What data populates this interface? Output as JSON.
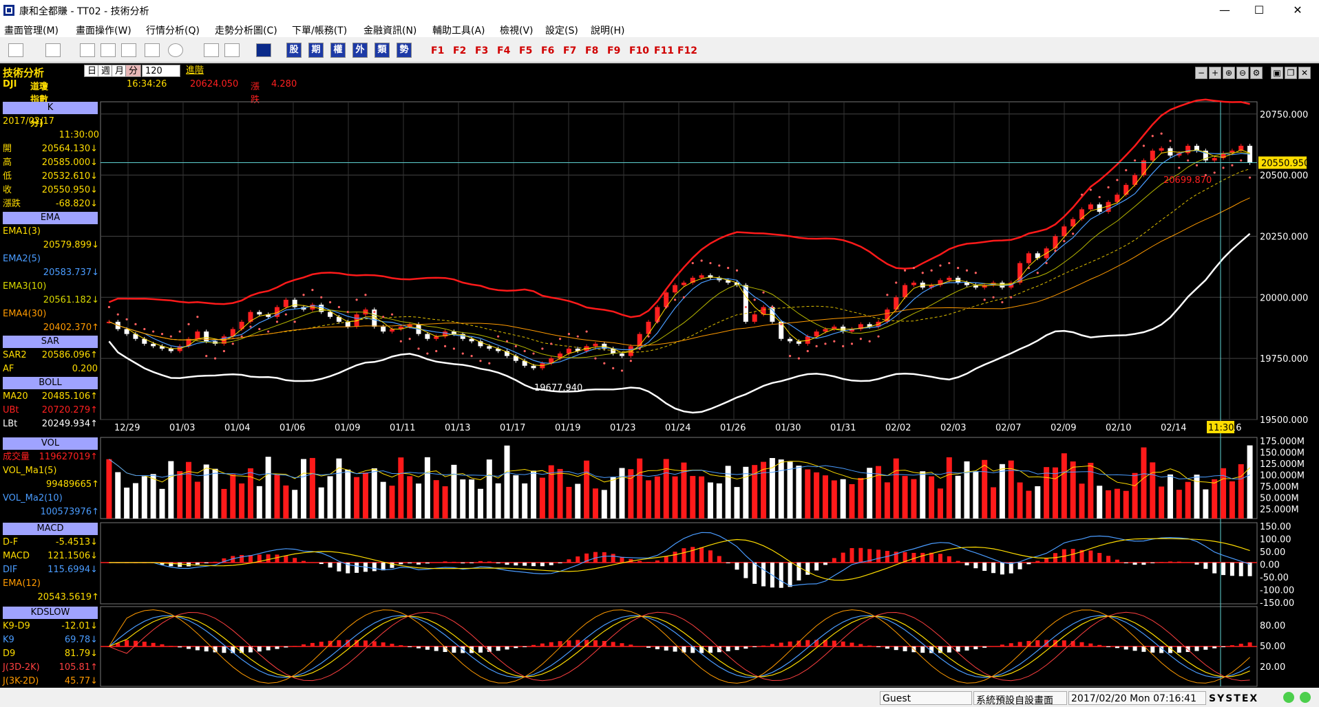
{
  "window": {
    "title": "康和全都賺 - TT02 - 技術分析",
    "minimize": "—",
    "maximize": "☐",
    "close": "✕"
  },
  "menu": [
    "畫面管理(M)",
    "畫面操作(W)",
    "行情分析(Q)",
    "走勢分析圖(C)",
    "下單/帳務(T)",
    "金融資訊(N)",
    "輔助工具(A)",
    "檢視(V)",
    "設定(S)",
    "說明(H)"
  ],
  "toolbar": {
    "blue_buttons": [
      "股",
      "期",
      "權",
      "外",
      "類",
      "勢"
    ],
    "fkeys": [
      "F1",
      "F2",
      "F3",
      "F4",
      "F5",
      "F6",
      "F7",
      "F8",
      "F9",
      "F10",
      "F11",
      "F12"
    ]
  },
  "header": {
    "title": "技術分析",
    "periods": [
      "日",
      "週",
      "月",
      "分"
    ],
    "count": "120",
    "advanced": "進階",
    "symbol": "DJI",
    "name": "道瓊指數(120分)",
    "time": "16:34:26",
    "price": "20624.050",
    "change_label": "漲跌",
    "change": "4.280"
  },
  "k_panel": {
    "title": "K",
    "date": "2017/02/17",
    "time": "11:30:00",
    "rows": [
      {
        "k": "開",
        "v": "20564.130↓"
      },
      {
        "k": "高",
        "v": "20585.000↓"
      },
      {
        "k": "低",
        "v": "20532.610↓"
      },
      {
        "k": "收",
        "v": "20550.950↓"
      },
      {
        "k": "漲跌",
        "v": "-68.820↓"
      }
    ]
  },
  "ema_panel": {
    "title": "EMA",
    "rows": [
      {
        "k": "EMA1(3)",
        "v": "20579.899↓"
      },
      {
        "k": "EMA2(5)",
        "v": "20583.737↓"
      },
      {
        "k": "EMA3(10)",
        "v": "20561.182↓"
      },
      {
        "k": "EMA4(30)",
        "v": "20402.370↑"
      }
    ]
  },
  "sar_panel": {
    "title": "SAR",
    "rows": [
      {
        "k": "SAR2",
        "v": "20586.096↑"
      },
      {
        "k": "AF",
        "v": "0.200"
      }
    ]
  },
  "boll_panel": {
    "title": "BOLL",
    "rows": [
      {
        "k": "MA20",
        "v": "20485.106↑"
      },
      {
        "k": "UBt",
        "v": "20720.279↑"
      },
      {
        "k": "LBt",
        "v": "20249.934↑"
      }
    ]
  },
  "vol_panel": {
    "title": "VOL",
    "rows": [
      {
        "k": "成交量",
        "v": "119627019↑"
      },
      {
        "k": "VOL_Ma1(5)",
        "v": ""
      },
      {
        "k": "",
        "v": "99489665↑"
      },
      {
        "k": "VOL_Ma2(10)",
        "v": ""
      },
      {
        "k": "",
        "v": "100573976↑"
      }
    ]
  },
  "macd_panel": {
    "title": "MACD",
    "rows": [
      {
        "k": "D-F",
        "v": "-5.4513↓"
      },
      {
        "k": "MACD",
        "v": "121.1506↓"
      },
      {
        "k": "DIF",
        "v": "115.6994↓"
      },
      {
        "k": "EMA(12)",
        "v": ""
      },
      {
        "k": "",
        "v": "20543.5619↑"
      }
    ]
  },
  "kd_panel": {
    "title": "KDSLOW",
    "rows": [
      {
        "k": "K9-D9",
        "v": "-12.01↓"
      },
      {
        "k": "K9",
        "v": "69.78↓"
      },
      {
        "k": "D9",
        "v": "81.79↓"
      },
      {
        "k": "J(3D-2K)",
        "v": "105.81↑"
      },
      {
        "k": "J(3K-2D)",
        "v": "45.77↓"
      }
    ]
  },
  "price_axis": [
    "20750.000",
    "20500.000",
    "20250.000",
    "20000.000",
    "19750.000",
    "19500.000"
  ],
  "price_tag": "20550.950",
  "high_label": "20699.870",
  "low_label": "19677.940",
  "dates": [
    "12/29",
    "01/03",
    "01/04",
    "01/06",
    "01/09",
    "01/11",
    "01/13",
    "01/17",
    "01/19",
    "01/23",
    "01/24",
    "01/26",
    "01/30",
    "01/31",
    "02/02",
    "02/03",
    "02/07",
    "02/09",
    "02/10",
    "02/14",
    "02/16"
  ],
  "time_tag": "11:30",
  "vol_axis": [
    "175.000M",
    "150.000M",
    "125.000M",
    "100.000M",
    "75.000M",
    "50.000M",
    "25.000M"
  ],
  "macd_axis": [
    "150.00",
    "100.00",
    "50.00",
    "0.00",
    "-50.00",
    "-100.00",
    "-150.00"
  ],
  "kd_axis": [
    "80.00",
    "50.00",
    "20.00"
  ],
  "chart_data": {
    "type": "candlestick",
    "title": "DJI 道瓊指數(120分)",
    "ylim": [
      19500,
      20800
    ],
    "y_ticks": [
      20750,
      20500,
      20250,
      20000,
      19750,
      19500
    ],
    "x_labels": [
      "12/29",
      "01/03",
      "01/04",
      "01/06",
      "01/09",
      "01/11",
      "01/13",
      "01/17",
      "01/19",
      "01/23",
      "01/24",
      "01/26",
      "01/30",
      "01/31",
      "02/02",
      "02/03",
      "02/07",
      "02/09",
      "02/10",
      "02/14",
      "02/16"
    ],
    "close": [
      19900,
      19870,
      19850,
      19830,
      19810,
      19800,
      19790,
      19780,
      19800,
      19830,
      19860,
      19820,
      19810,
      19840,
      19870,
      19900,
      19940,
      19930,
      19920,
      19960,
      19990,
      19960,
      19950,
      19970,
      19940,
      19920,
      19900,
      19880,
      19930,
      19950,
      19880,
      19860,
      19870,
      19880,
      19890,
      19850,
      19830,
      19840,
      19860,
      19850,
      19830,
      19820,
      19800,
      19790,
      19780,
      19760,
      19740,
      19720,
      19710,
      19730,
      19750,
      19770,
      19790,
      19780,
      19800,
      19810,
      19790,
      19770,
      19760,
      19800,
      19850,
      19900,
      19960,
      20020,
      20050,
      20060,
      20080,
      20090,
      20080,
      20070,
      20060,
      20050,
      19900,
      19930,
      19960,
      19900,
      19830,
      19820,
      19810,
      19840,
      19860,
      19870,
      19880,
      19860,
      19870,
      19890,
      19880,
      19900,
      19950,
      20000,
      20050,
      20060,
      20040,
      20050,
      20070,
      20080,
      20060,
      20050,
      20040,
      20050,
      20060,
      20040,
      20060,
      20140,
      20180,
      20160,
      20200,
      20250,
      20290,
      20320,
      20360,
      20380,
      20350,
      20390,
      20420,
      20460,
      20500,
      20560,
      20600,
      20610,
      20580,
      20590,
      20620,
      20600,
      20560,
      20570,
      20590,
      20600,
      20620,
      20550
    ]
  }
}
